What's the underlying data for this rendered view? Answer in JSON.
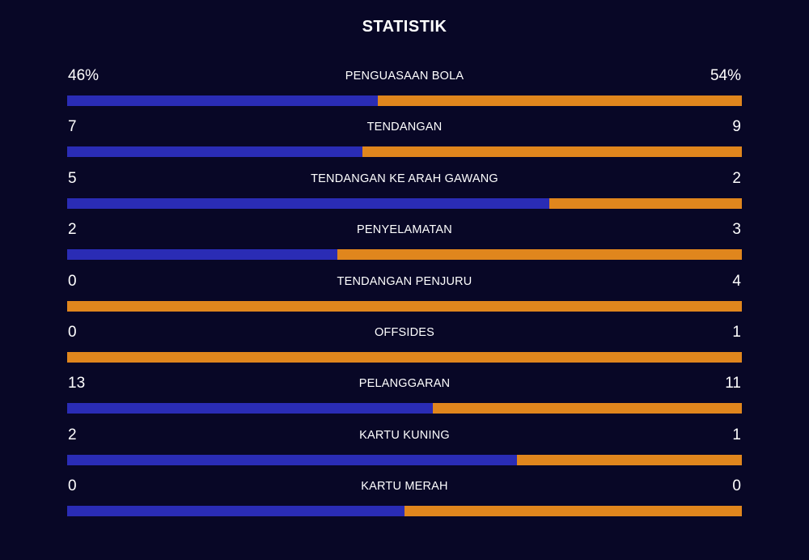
{
  "title": "STATISTIK",
  "colors": {
    "background": "#080726",
    "home": "#2a2cb5",
    "away": "#e0861d"
  },
  "stats": [
    {
      "label": "PENGUASAAN BOLA",
      "home": "46%",
      "away": "54%",
      "home_share": 0.46
    },
    {
      "label": "TENDANGAN",
      "home": "7",
      "away": "9",
      "home_share": 0.4375
    },
    {
      "label": "TENDANGAN KE ARAH GAWANG",
      "home": "5",
      "away": "2",
      "home_share": 0.7143
    },
    {
      "label": "PENYELAMATAN",
      "home": "2",
      "away": "3",
      "home_share": 0.4
    },
    {
      "label": "TENDANGAN PENJURU",
      "home": "0",
      "away": "4",
      "home_share": 0
    },
    {
      "label": "OFFSIDES",
      "home": "0",
      "away": "1",
      "home_share": 0
    },
    {
      "label": "PELANGGARAN",
      "home": "13",
      "away": "11",
      "home_share": 0.5417
    },
    {
      "label": "KARTU KUNING",
      "home": "2",
      "away": "1",
      "home_share": 0.6667
    },
    {
      "label": "KARTU MERAH",
      "home": "0",
      "away": "0",
      "home_share": 0.5
    }
  ]
}
